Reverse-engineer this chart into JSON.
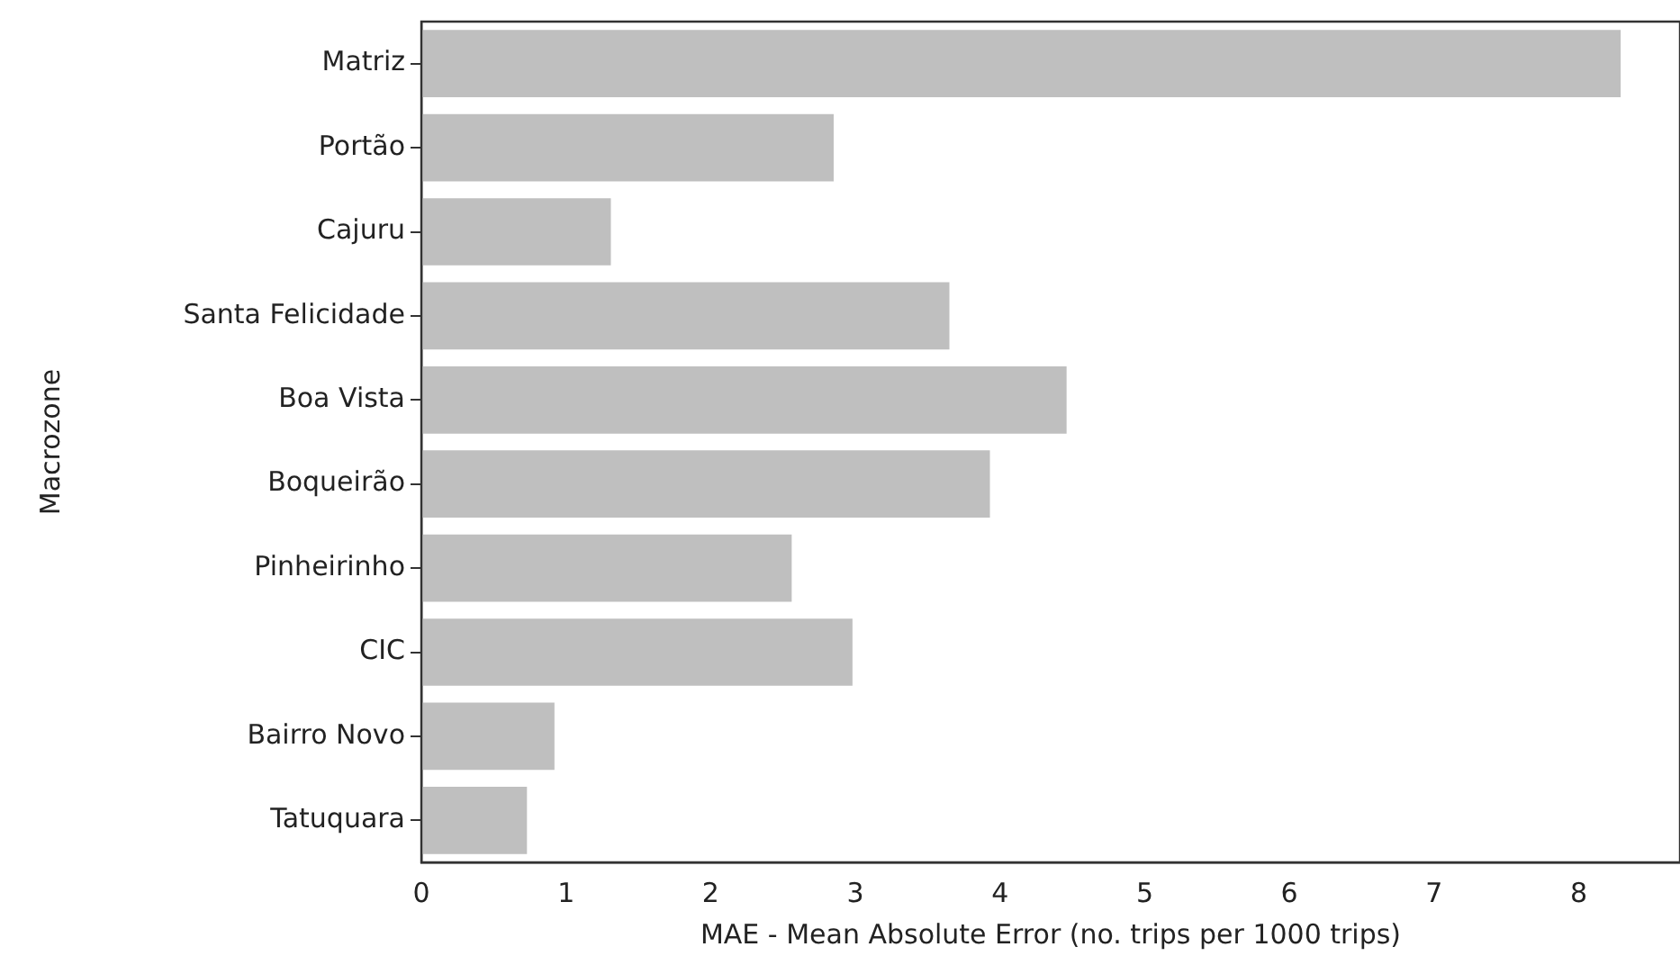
{
  "chart_data": {
    "type": "bar",
    "orientation": "horizontal",
    "xlabel": "MAE - Mean Absolute Error (no. trips per 1000 trips)",
    "ylabel": "Macrozone",
    "categories": [
      "Matriz",
      "Portão",
      "Cajuru",
      "Santa Felicidade",
      "Boa Vista",
      "Boqueirão",
      "Pinheirinho",
      "CIC",
      "Bairro Novo",
      "Tatuquara"
    ],
    "values": [
      8.29,
      2.85,
      1.31,
      3.65,
      4.46,
      3.93,
      2.56,
      2.98,
      0.92,
      0.73
    ],
    "color": "#bfbfbf",
    "xlim": [
      0,
      8.7
    ],
    "xticks": [
      0,
      1,
      2,
      3,
      4,
      5,
      6,
      7,
      8
    ],
    "grid": false,
    "legend": false
  }
}
